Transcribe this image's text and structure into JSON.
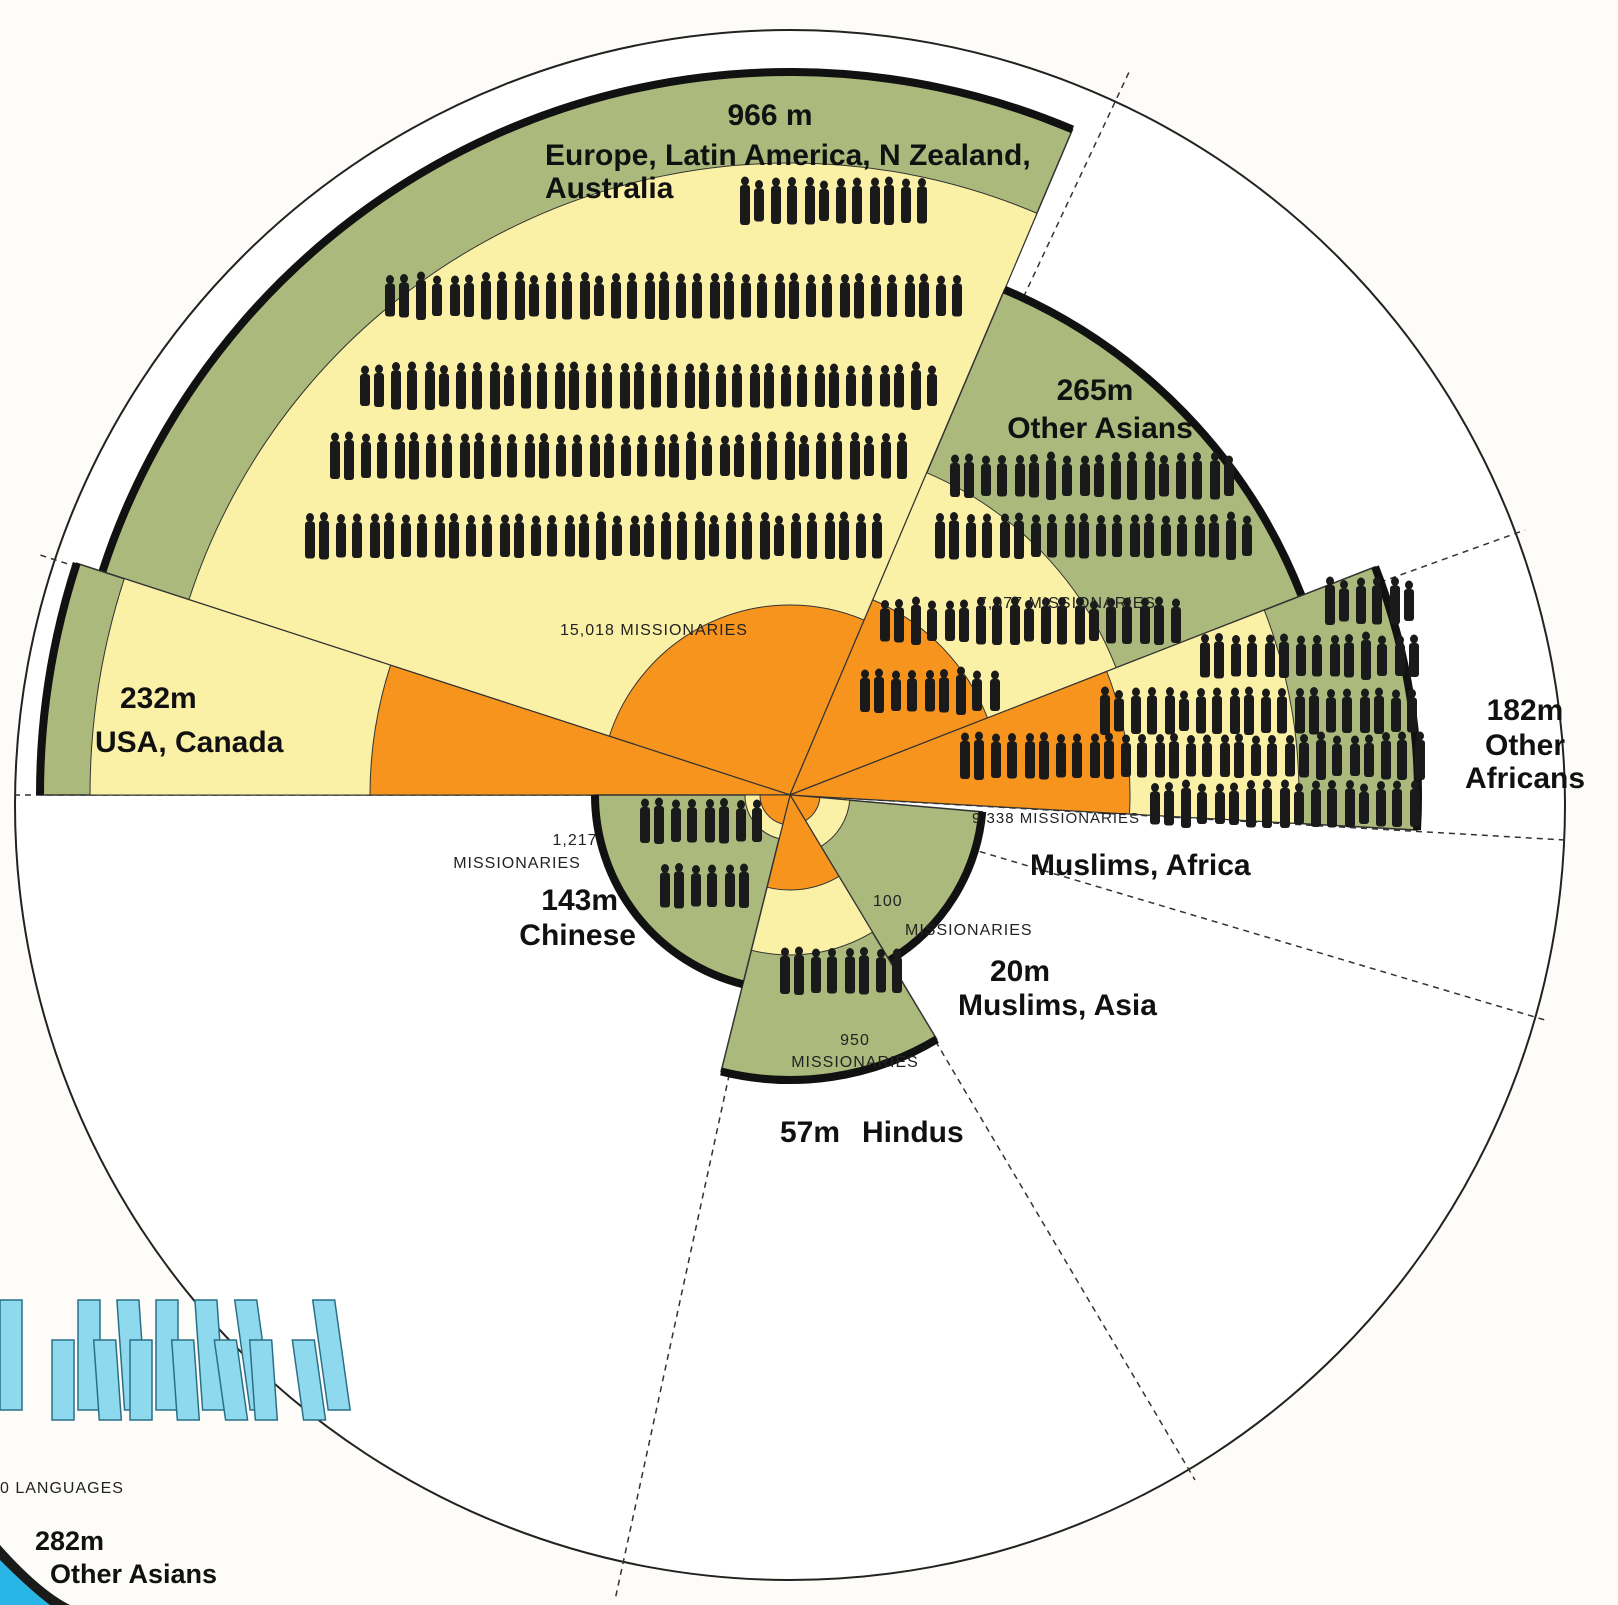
{
  "segments": [
    {
      "population": "966 m",
      "name_lines": [
        "Europe, Latin America, N Zealand,",
        "Australia"
      ],
      "missionaries": [
        "15,018 MISSIONARIES"
      ]
    },
    {
      "population": "232m",
      "name_lines": [
        "USA, Canada"
      ],
      "missionaries": []
    },
    {
      "population": "265m",
      "name_lines": [
        "Other Asians"
      ],
      "missionaries": [
        "7,077 MISSIONARIES"
      ]
    },
    {
      "population": "182m",
      "name_lines": [
        "Other",
        "Africans"
      ],
      "missionaries": [
        "9,338 MISSIONARIES"
      ]
    },
    {
      "population": null,
      "name_lines": [
        "Muslims, Africa"
      ],
      "missionaries": []
    },
    {
      "population": "20m",
      "name_lines": [
        "Muslims, Asia"
      ],
      "missionaries": [
        "100",
        "MISSIONARIES"
      ]
    },
    {
      "population": "57m",
      "name_lines": [
        "Hindus"
      ],
      "missionaries": [
        "950",
        "MISSIONARIES"
      ]
    },
    {
      "population": "143m",
      "name_lines": [
        "Chinese"
      ],
      "missionaries": [
        "1,217",
        "MISSIONARIES"
      ]
    }
  ],
  "corner": {
    "languages": "0 LANGUAGES",
    "population": "282m",
    "name": "Other Asians"
  }
}
